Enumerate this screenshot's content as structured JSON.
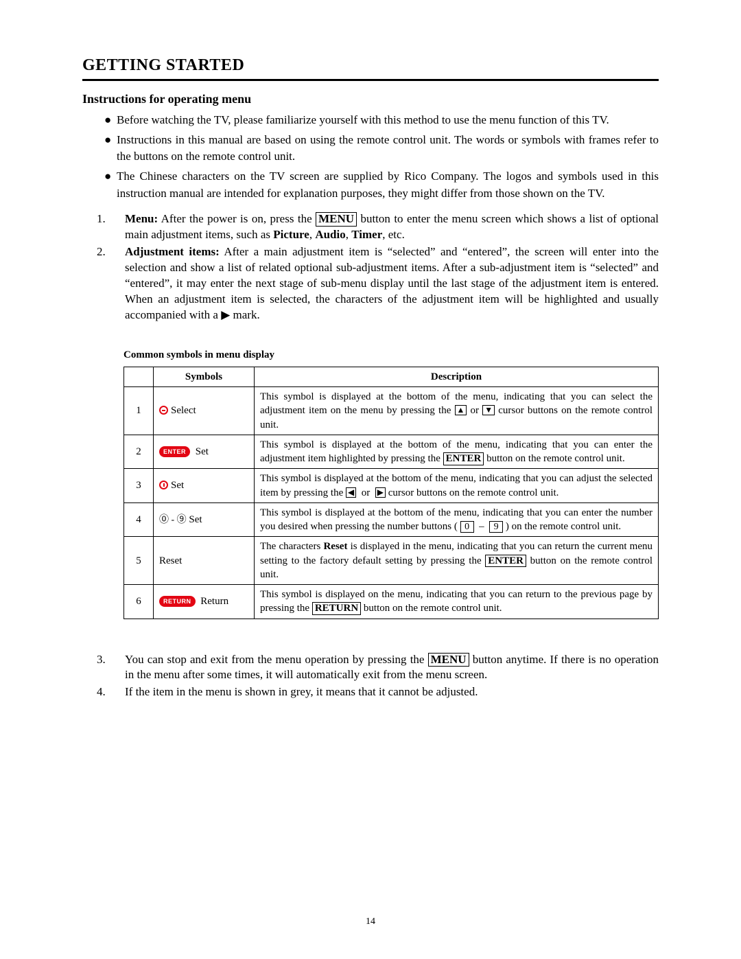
{
  "heading": "GETTING STARTED",
  "subheading": "Instructions for operating menu",
  "bullets": [
    "Before watching the TV, please familiarize yourself with this method to use the menu function of this TV.",
    "Instructions in this manual are based on using the remote control unit. The words or symbols with frames refer to the buttons on the remote control unit.",
    "The Chinese characters on the TV screen are supplied by Rico Company. The logos and symbols used in this instruction manual are intended for explanation purposes, they might differ from those shown on the TV."
  ],
  "ordered1": {
    "item1": {
      "lead": "Menu:",
      "pre": " After the power is on, press the ",
      "btn": "MENU",
      "post1": " button to enter the menu screen which shows a list of optional main adjustment items, such as ",
      "b1": "Picture",
      "b2": "Audio",
      "b3": "Timer",
      "tail": ", etc."
    },
    "item2": {
      "lead": "Adjustment items:",
      "body": " After a main adjustment item is “selected” and “entered”, the screen will enter into the selection and show a list of related optional sub-adjustment items. After a sub-adjustment item is “selected” and “entered”, it may enter the next stage of sub-menu display until the last stage of the adjustment item is entered. When an adjustment item is selected, the characters of the adjustment item will be highlighted and usually accompanied with a ▶ mark."
    }
  },
  "table": {
    "caption": "Common symbols in menu display",
    "h_sym": "Symbols",
    "h_desc": "Description",
    "rows": [
      {
        "n": "1",
        "sym_html": "<span class='icon-circle updown' data-name='select-icon' data-interactable='false'></span>Select",
        "desc_html": "This symbol is displayed at the bottom of the menu, indicating that you can select the adjustment item on the menu by pressing the <span class='framed arrow'>▲</span> or <span class='framed arrow'>▼</span> cursor buttons on the remote control unit."
      },
      {
        "n": "2",
        "sym_html": "<span class='pill' data-name='enter-pill-icon' data-interactable='false'>ENTER</span> Set",
        "desc_html": "This symbol is displayed at the bottom of the menu, indicating that you can enter the adjustment item highlighted by pressing the <span class='framed'>ENTER</span> button on the remote control unit."
      },
      {
        "n": "3",
        "sym_html": "<span class='icon-circle leftright' data-name='adjust-icon' data-interactable='false'></span>Set",
        "desc_html": "This symbol is displayed at the bottom of the menu, indicating that you can adjust the selected item by pressing the <span class='framed arrow'>◀</span>&nbsp; or &nbsp;<span class='framed arrow'>▶</span> cursor buttons on the remote control unit."
      },
      {
        "n": "4",
        "sym_html": "<span class='num-circ' data-name='number-range-icon' data-interactable='false'>⓪ - ⑨</span> Set",
        "desc_html": "This symbol is displayed at the bottom of the menu, indicating that you can enter the number you desired when pressing the number buttons ( <span class='framed sm'>0</span> &nbsp;–&nbsp; <span class='framed sm'>9</span> ) on the remote control unit."
      },
      {
        "n": "5",
        "sym_html": "Reset",
        "desc_html": "The characters <b>Reset</b> is displayed in the menu, indicating that you can return the current menu setting to the factory default setting by pressing the <span class='framed'>ENTER</span> button on the remote control unit."
      },
      {
        "n": "6",
        "sym_html": "<span class='pill' data-name='return-pill-icon' data-interactable='false'>RETURN</span> Return",
        "desc_html": "This symbol is displayed on the menu, indicating that you can return to the previous page by pressing the <span class='framed'>RETURN</span> button on the remote control unit."
      }
    ]
  },
  "ordered2": {
    "item3": {
      "pre": "You can stop and exit from the menu operation by pressing the ",
      "btn": "MENU",
      "post": " button anytime. If there is no operation in the menu after some times, it will automatically exit from the menu screen."
    },
    "item4": "If the item in the menu is shown in grey, it means that it cannot be adjusted."
  },
  "page_number": "14"
}
